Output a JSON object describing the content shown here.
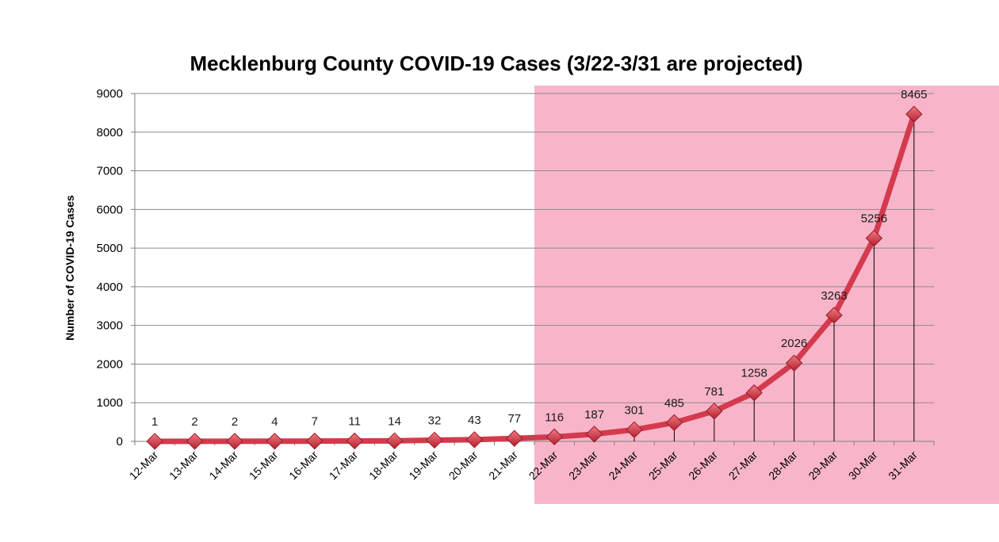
{
  "chart_data": {
    "type": "line",
    "title": "Mecklenburg County COVID-19 Cases (3/22-3/31 are projected)",
    "xlabel": "",
    "ylabel": "Number of COVID-19 Cases",
    "ylim": [
      0,
      9000
    ],
    "yticks": [
      0,
      1000,
      2000,
      3000,
      4000,
      5000,
      6000,
      7000,
      8000,
      9000
    ],
    "grid": true,
    "legend": "none",
    "categories": [
      "12-Mar",
      "13-Mar",
      "14-Mar",
      "15-Mar",
      "16-Mar",
      "17-Mar",
      "18-Mar",
      "19-Mar",
      "20-Mar",
      "21-Mar",
      "22-Mar",
      "23-Mar",
      "24-Mar",
      "25-Mar",
      "26-Mar",
      "27-Mar",
      "28-Mar",
      "29-Mar",
      "30-Mar",
      "31-Mar"
    ],
    "series": [
      {
        "values": [
          1,
          2,
          2,
          4,
          7,
          11,
          14,
          32,
          43,
          77,
          116,
          187,
          301,
          485,
          781,
          1258,
          2026,
          3263,
          5256,
          8465
        ],
        "color": "#d43a4e"
      }
    ],
    "projected_start_category": "22-Mar",
    "projected_shading_color": "#f8b5c9",
    "marker": "diamond",
    "drop_lines": true
  }
}
